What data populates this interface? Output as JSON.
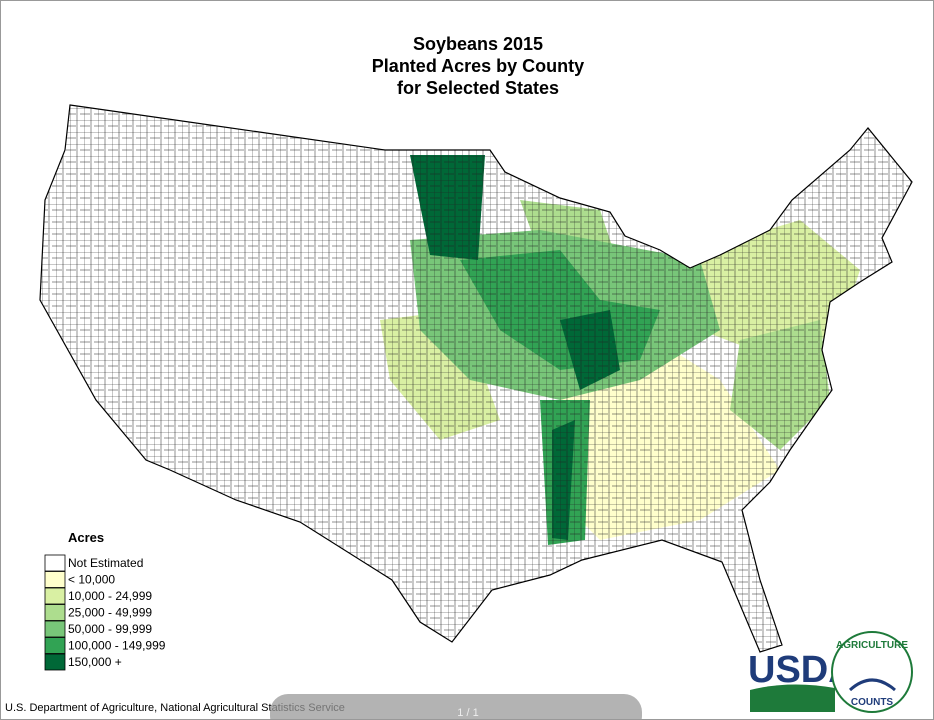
{
  "header": {
    "title_lines": [
      "Soybeans 2015",
      "Planted Acres by County",
      "for Selected States"
    ]
  },
  "legend": {
    "title": "Acres",
    "items": [
      {
        "label": "Not Estimated",
        "color": "#ffffff"
      },
      {
        "label": "< 10,000",
        "color": "#ffffcc"
      },
      {
        "label": "10,000 - 24,999",
        "color": "#d9f0a3"
      },
      {
        "label": "25,000 - 49,999",
        "color": "#addd8e"
      },
      {
        "label": "50,000 - 99,999",
        "color": "#78c679"
      },
      {
        "label": "100,000 - 149,999",
        "color": "#31a354"
      },
      {
        "label": "150,000 +",
        "color": "#006837"
      }
    ]
  },
  "footer": {
    "source": "U.S. Department of Agriculture, National Agricultural Statistics Service"
  },
  "logo": {
    "agency": "USDA",
    "seal_top": "AGRICULTURE",
    "seal_bottom": "COUNTS"
  },
  "toolbar": {
    "page": "1 / 1"
  }
}
